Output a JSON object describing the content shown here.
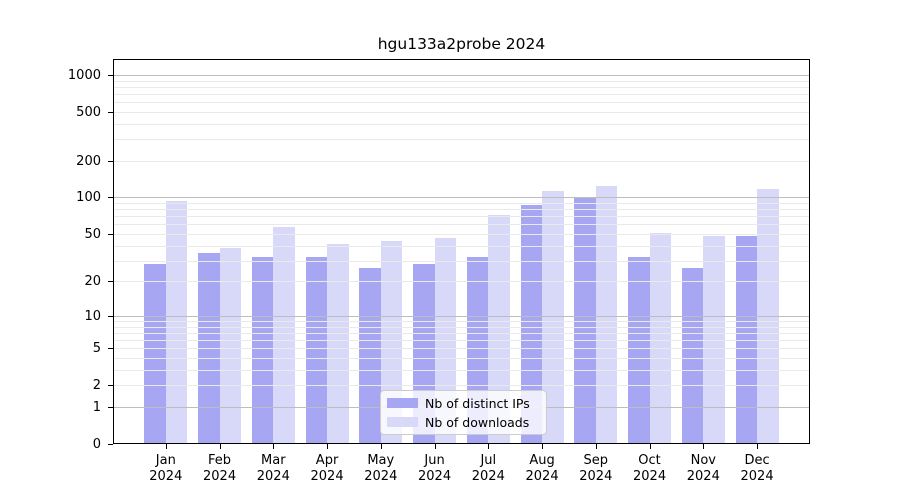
{
  "chart_data": {
    "type": "bar",
    "title": "hgu133a2probe 2024",
    "categories": [
      "Jan",
      "Feb",
      "Mar",
      "Apr",
      "May",
      "Jun",
      "Jul",
      "Aug",
      "Sep",
      "Oct",
      "Nov",
      "Dec"
    ],
    "x_tick_year": "2024",
    "series": [
      {
        "name": "Nb of distinct IPs",
        "color": "#A6A6F2",
        "values": [
          28,
          35,
          32,
          32,
          26,
          28,
          32,
          87,
          100,
          32,
          26,
          48
        ]
      },
      {
        "name": "Nb of downloads",
        "color": "#D8D8F8",
        "values": [
          93,
          38,
          57,
          41,
          44,
          46,
          72,
          112,
          125,
          51,
          48,
          117
        ]
      }
    ],
    "y_axis": {
      "scale": "log10(1+x)",
      "tick_values": [
        0,
        1,
        2,
        5,
        10,
        20,
        50,
        100,
        200,
        500,
        1000
      ],
      "top_value": 1350
    },
    "grid": {
      "major_values": [
        1,
        10,
        100,
        1000
      ],
      "minor_values": [
        2,
        3,
        4,
        5,
        6,
        7,
        8,
        9,
        20,
        30,
        40,
        50,
        60,
        70,
        80,
        90,
        200,
        300,
        400,
        500,
        600,
        700,
        800,
        900
      ],
      "major_color": "#BDBDBD",
      "minor_color": "#EAEAEA"
    },
    "legend": {
      "position": "lower center"
    },
    "colors": {
      "background": "#FFFFFF",
      "axis": "#000000"
    }
  }
}
